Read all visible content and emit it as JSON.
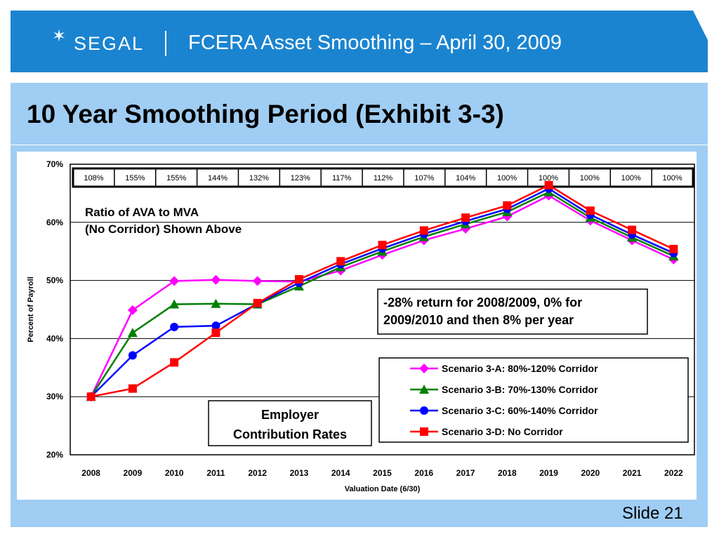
{
  "header": {
    "logo_text": "SEGAL",
    "title": "FCERA Asset Smoothing – April 30, 2009"
  },
  "slide": {
    "title": "10 Year Smoothing Period (Exhibit 3-3)",
    "number_label": "Slide 21"
  },
  "colors": {
    "header_band": "#1b84d0",
    "title_band": "#a0cdf3",
    "scenario_a": "#ff00ff",
    "scenario_b": "#008000",
    "scenario_c": "#0000ff",
    "scenario_d": "#ff0000"
  },
  "chart_data": {
    "type": "line",
    "xlabel": "Valuation Date (6/30)",
    "ylabel": "Percent of Payroll",
    "ylim": [
      20,
      70
    ],
    "y_ticks": [
      "20%",
      "30%",
      "40%",
      "50%",
      "60%",
      "70%"
    ],
    "y_tick_values": [
      20,
      30,
      40,
      50,
      60,
      70
    ],
    "grid": true,
    "categories": [
      "2008",
      "2009",
      "2010",
      "2011",
      "2012",
      "2013",
      "2014",
      "2015",
      "2016",
      "2017",
      "2018",
      "2019",
      "2020",
      "2021",
      "2022"
    ],
    "ratio_row": {
      "values": [
        "108%",
        "155%",
        "155%",
        "144%",
        "132%",
        "123%",
        "117%",
        "112%",
        "107%",
        "104%",
        "100%",
        "100%",
        "100%",
        "100%",
        "100%"
      ]
    },
    "annotations": {
      "ratio_note_line1": "Ratio of AVA to MVA",
      "ratio_note_line2": "(No Corridor) Shown Above",
      "return_note_line1": "-28% return for 2008/2009, 0% for",
      "return_note_line2": "2009/2010 and then 8% per year",
      "employer_line1": "Employer",
      "employer_line2": "Contribution Rates"
    },
    "legend_position": "bottom-right",
    "series": [
      {
        "name": "Scenario 3-A: 80%-120% Corridor",
        "color": "#ff00ff",
        "marker": "diamond",
        "values": [
          30.0,
          44.9,
          49.9,
          50.1,
          49.9,
          49.8,
          51.7,
          54.4,
          56.9,
          58.9,
          61.0,
          64.6,
          60.3,
          56.9,
          53.6
        ]
      },
      {
        "name": "Scenario 3-B: 70%-130% Corridor",
        "color": "#008000",
        "marker": "triangle",
        "values": [
          30.0,
          41.0,
          45.9,
          46.0,
          45.9,
          49.0,
          52.3,
          55.0,
          57.5,
          59.7,
          61.8,
          65.2,
          60.8,
          57.4,
          54.2
        ]
      },
      {
        "name": "Scenario 3-C: 60%-140% Corridor",
        "color": "#0000ff",
        "marker": "circle",
        "values": [
          30.0,
          37.1,
          42.0,
          42.2,
          46.0,
          49.6,
          52.8,
          55.5,
          58.0,
          60.2,
          62.3,
          65.8,
          61.3,
          57.9,
          54.7
        ]
      },
      {
        "name": "Scenario 3-D: No Corridor",
        "color": "#ff0000",
        "marker": "square",
        "values": [
          30.0,
          31.4,
          35.9,
          41.0,
          46.1,
          50.2,
          53.3,
          56.1,
          58.6,
          60.8,
          62.9,
          66.4,
          62.0,
          58.7,
          55.4
        ]
      }
    ]
  }
}
